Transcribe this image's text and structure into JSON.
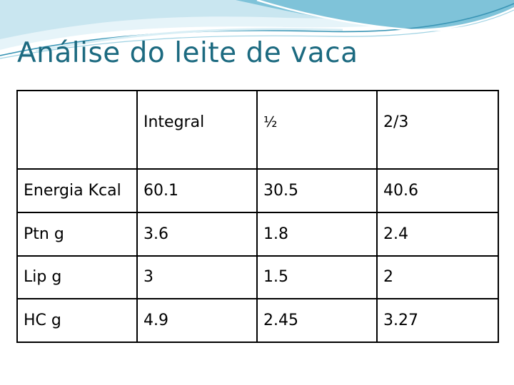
{
  "slide": {
    "title": "Análise do leite de vaca"
  },
  "table": {
    "columns": [
      "",
      "Integral",
      "½",
      "2/3"
    ],
    "rows": [
      {
        "label": "Energia Kcal",
        "values": [
          "60.1",
          "30.5",
          "40.6"
        ]
      },
      {
        "label": "Ptn g",
        "values": [
          "3.6",
          "1.8",
          "2.4"
        ]
      },
      {
        "label": "Lip g",
        "values": [
          "3",
          "1.5",
          "2"
        ]
      },
      {
        "label": "HC g",
        "values": [
          "4.9",
          "2.45",
          "3.27"
        ]
      }
    ]
  },
  "colors": {
    "title": "#1c6a80",
    "swoosh_light": "#c9e6f0",
    "swoosh_mid": "#7fc3d9",
    "swoosh_dark": "#3a95b5",
    "border": "#000000"
  }
}
